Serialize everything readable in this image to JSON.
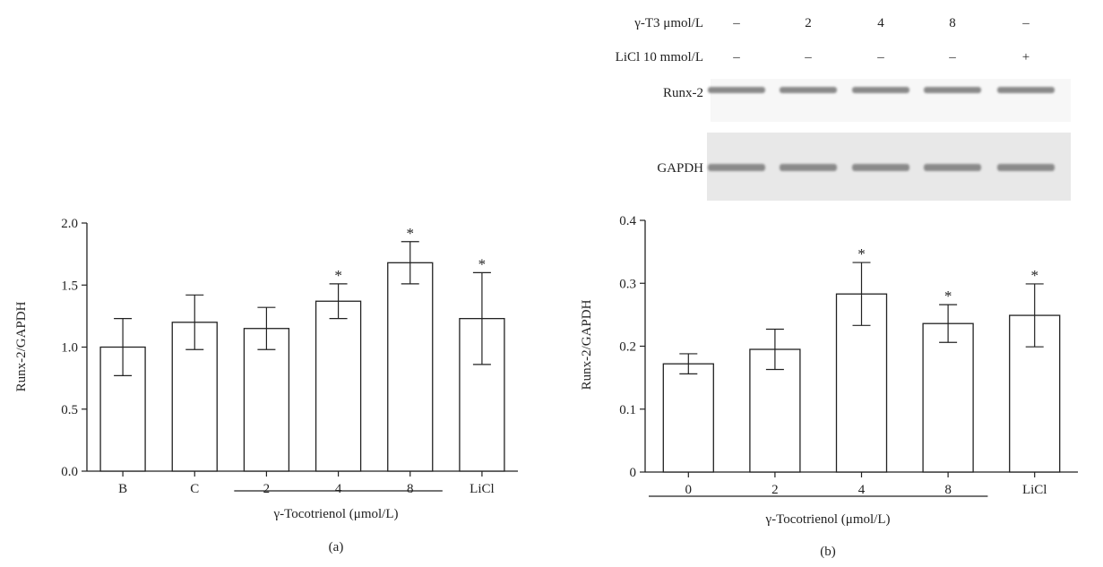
{
  "chart_data": [
    {
      "type": "bar",
      "panel": "(a)",
      "ylabel": "Runx-2/GAPDH",
      "xlabel": "γ-Tocotrienol (μmol/L)",
      "categories": [
        "B",
        "C",
        "2",
        "4",
        "8",
        "LiCl"
      ],
      "values": [
        1.0,
        1.2,
        1.15,
        1.37,
        1.68,
        1.23
      ],
      "errors": [
        0.23,
        0.22,
        0.17,
        0.14,
        0.17,
        0.37
      ],
      "significance": [
        "",
        "",
        "",
        "*",
        "*",
        "*"
      ],
      "ylim": [
        0,
        2.0
      ],
      "yticks": [
        "0.0",
        "0.5",
        "1.0",
        "1.5",
        "2.0"
      ],
      "group_underline_categories": [
        "2",
        "4",
        "8"
      ]
    },
    {
      "type": "bar",
      "panel": "(b)",
      "ylabel": "Runx-2/GAPDH",
      "xlabel": "γ-Tocotrienol (μmol/L)",
      "categories": [
        "0",
        "2",
        "4",
        "8",
        "LiCl"
      ],
      "values": [
        0.172,
        0.195,
        0.283,
        0.236,
        0.249
      ],
      "errors": [
        0.016,
        0.032,
        0.05,
        0.03,
        0.05
      ],
      "significance": [
        "",
        "",
        "*",
        "*",
        "*"
      ],
      "ylim": [
        0,
        0.4
      ],
      "yticks": [
        "0",
        "0.1",
        "0.2",
        "0.3",
        "0.4"
      ],
      "group_underline_categories": [
        "0",
        "2",
        "4",
        "8"
      ]
    }
  ],
  "blot": {
    "row1_label": "γ-T3 μmol/L",
    "row1_values": [
      "–",
      "2",
      "4",
      "8",
      "–"
    ],
    "row2_label": "LiCl 10 mmol/L",
    "row2_values": [
      "–",
      "–",
      "–",
      "–",
      "+"
    ],
    "band1_label": "Runx-2",
    "band2_label": "GAPDH"
  },
  "colors": {
    "axis": "#222222",
    "bar_fill": "#ffffff",
    "band": "#8a8a8a",
    "gel_bg": "#e8e8e8"
  }
}
